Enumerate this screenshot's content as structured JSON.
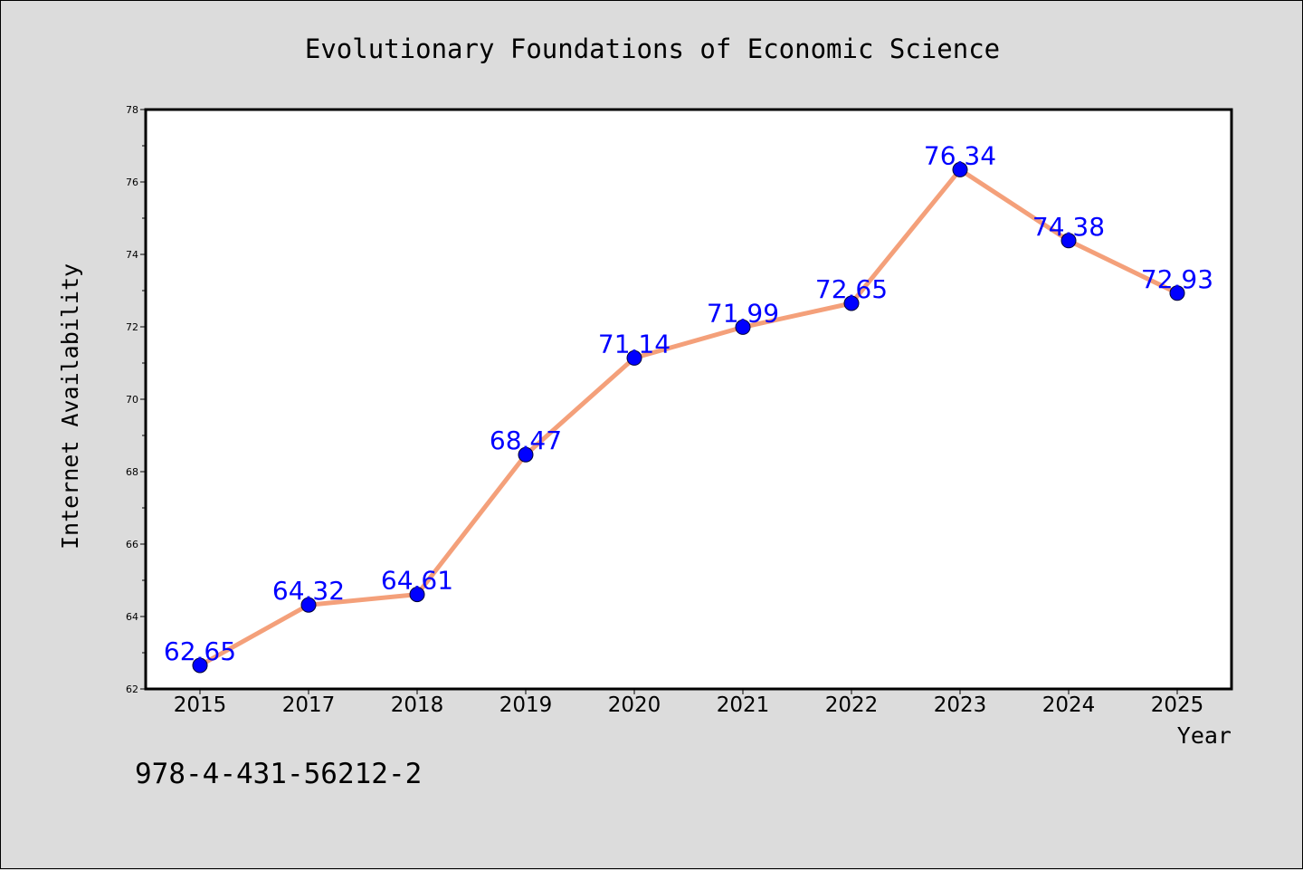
{
  "chart_data": {
    "type": "line",
    "title": "Evolutionary Foundations of Economic Science",
    "xlabel": "Year",
    "ylabel": "Internet Availability",
    "categories": [
      "2015",
      "2017",
      "2018",
      "2019",
      "2020",
      "2021",
      "2022",
      "2023",
      "2024",
      "2025"
    ],
    "series": [
      {
        "values": [
          62.65,
          64.32,
          64.61,
          68.47,
          71.14,
          71.99,
          72.65,
          76.34,
          74.38,
          72.93
        ],
        "data_labels": [
          "62.65",
          "64.32",
          "64.61",
          "68.47",
          "71.14",
          "71.99",
          "72.65",
          "76.34",
          "74.38",
          "72.93"
        ]
      }
    ],
    "ylim": [
      62,
      78
    ],
    "yticks": [
      "62",
      "64",
      "66",
      "68",
      "70",
      "72",
      "74",
      "76",
      "78"
    ],
    "grid": false,
    "legend": "none",
    "colors": {
      "line": "#f4a07a",
      "marker": "#0000ff",
      "label": "#0000ff",
      "plot_background": "#ffffff",
      "figure_background": "#dcdcdc"
    }
  },
  "footer": {
    "isbn": "978-4-431-56212-2"
  }
}
